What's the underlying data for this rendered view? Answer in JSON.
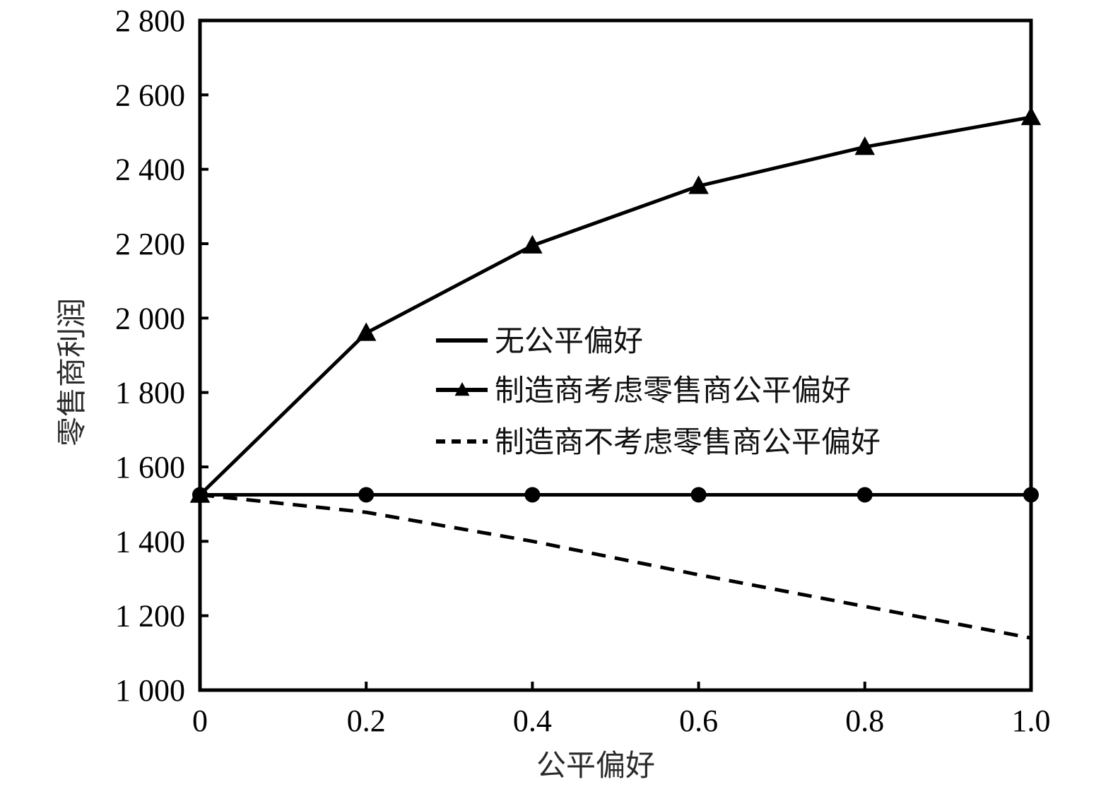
{
  "chart_data": {
    "type": "line",
    "title": "",
    "xlabel": "公平偏好",
    "ylabel": "零售商利润",
    "x": [
      0,
      0.2,
      0.4,
      0.6,
      0.8,
      1.0
    ],
    "xticks": [
      "0",
      "0.2",
      "0.4",
      "0.6",
      "0.8",
      "1.0"
    ],
    "xlim": [
      0,
      1.0
    ],
    "yticks": [
      "1 000",
      "1 200",
      "1 400",
      "1 600",
      "1 800",
      "2 000",
      "2 200",
      "2 400",
      "2 600",
      "2 800"
    ],
    "ylim": [
      1000,
      2800
    ],
    "grid": false,
    "legend_position": "center-right",
    "series": [
      {
        "name": "无公平偏好",
        "values": [
          1525,
          1525,
          1525,
          1525,
          1525,
          1525
        ],
        "line_style": "solid",
        "marker": "circle",
        "color": "#000000"
      },
      {
        "name": "制造商考虑零售商公平偏好",
        "values": [
          1525,
          1960,
          2195,
          2355,
          2460,
          2540
        ],
        "line_style": "solid",
        "marker": "triangle",
        "color": "#000000"
      },
      {
        "name": "制造商不考虑零售商公平偏好",
        "values": [
          1525,
          1478,
          1400,
          1310,
          1225,
          1140
        ],
        "line_style": "dashed",
        "marker": "none",
        "color": "#000000"
      }
    ],
    "legend_markers": [
      "none",
      "triangle",
      "none"
    ]
  }
}
